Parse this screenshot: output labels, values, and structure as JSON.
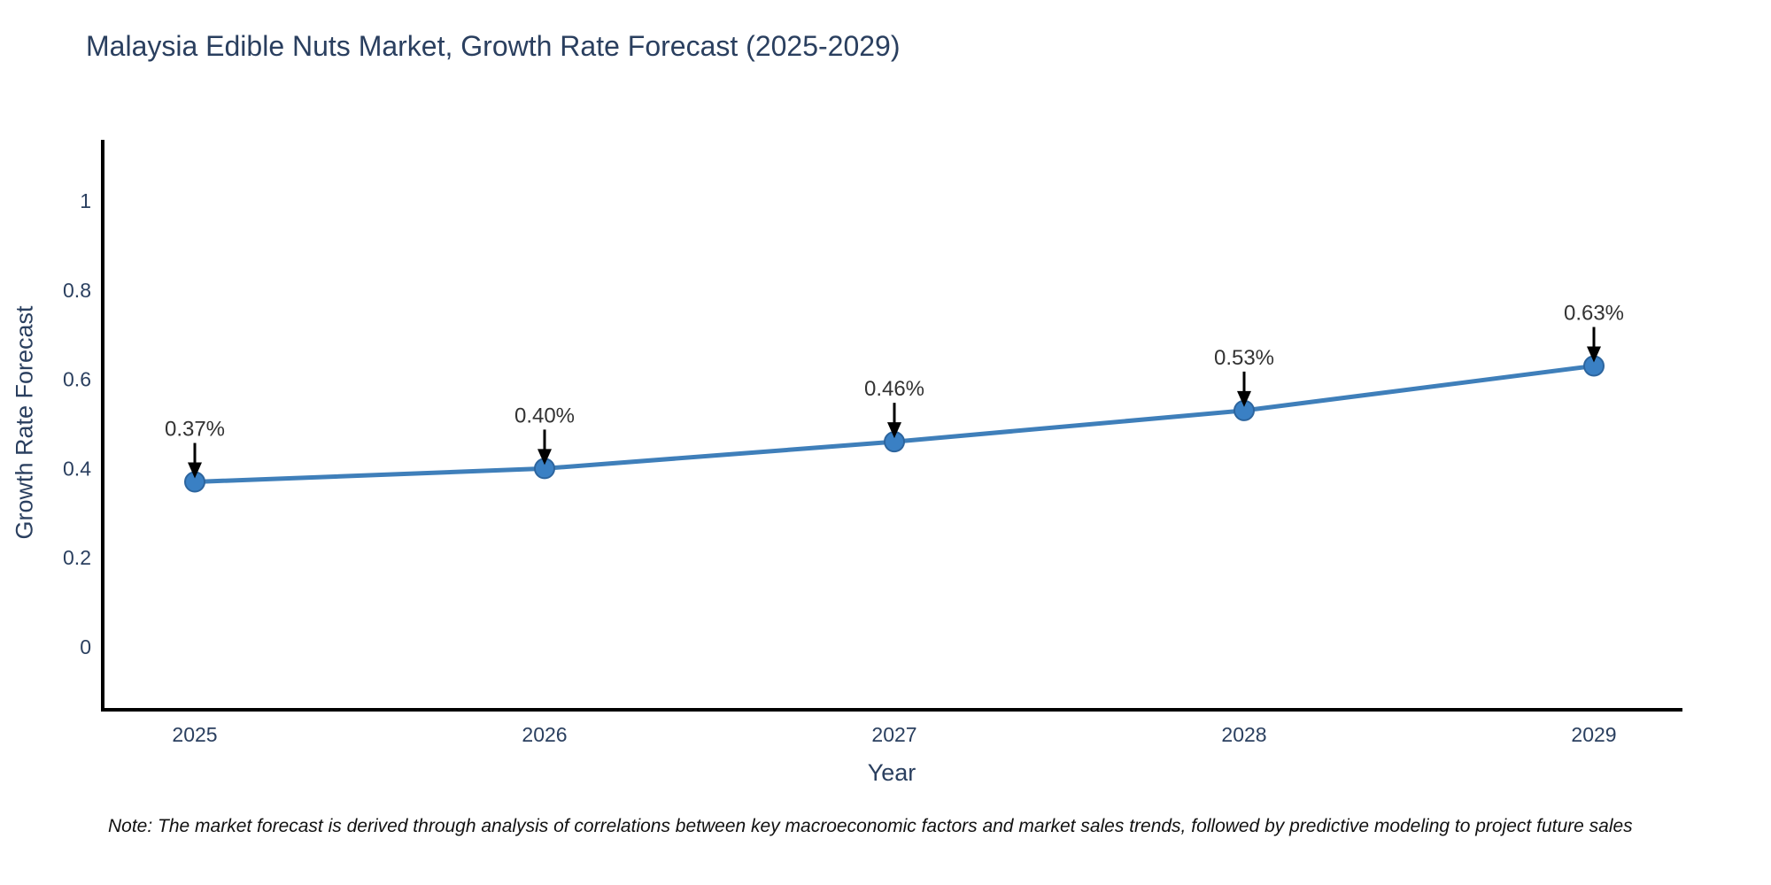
{
  "chart_data": {
    "type": "line",
    "title": "Malaysia Edible Nuts Market, Growth Rate Forecast (2025-2029)",
    "xlabel": "Year",
    "ylabel": "Growth Rate Forecast",
    "note": "Note: The market forecast is derived through analysis of correlations between key macroeconomic factors and market sales trends, followed by predictive modeling to project future sales",
    "categories": [
      "2025",
      "2026",
      "2027",
      "2028",
      "2029"
    ],
    "values": [
      0.37,
      0.4,
      0.46,
      0.53,
      0.63
    ],
    "point_labels": [
      "0.37%",
      "0.40%",
      "0.46%",
      "0.53%",
      "0.63%"
    ],
    "yticks": [
      0,
      0.2,
      0.4,
      0.6,
      0.8,
      1
    ],
    "ytick_labels": [
      "0",
      "0.2",
      "0.4",
      "0.6",
      "0.8",
      "1"
    ],
    "ylim": [
      -0.14,
      1.14
    ],
    "grid": false,
    "legend": "none",
    "colors": {
      "line": "#3f7fba",
      "marker_fill": "#3a80c4",
      "marker_edge": "#2d659e",
      "axis": "#000000",
      "text": "#2a3f5f",
      "annotation_text": "#333333",
      "arrow": "#000000"
    }
  }
}
